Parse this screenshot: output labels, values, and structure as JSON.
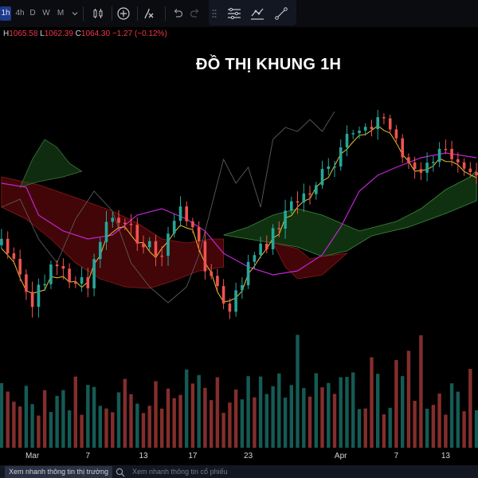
{
  "toolbar": {
    "timeframes": [
      "1h",
      "4h",
      "D",
      "W",
      "M"
    ],
    "active_timeframe": "1h",
    "icons": [
      "chevron-down-icon",
      "candles-icon",
      "add-indicator-icon",
      "indicators-icon",
      "undo-icon",
      "redo-icon",
      "drag-handle-icon",
      "settings-icon",
      "compare-icon",
      "drawing-icon"
    ]
  },
  "ohlc": {
    "h_label": "H",
    "h_value": "1065.58",
    "l_label": "L",
    "l_value": "1062.39",
    "c_label": "C",
    "c_value": "1064.30",
    "change": "−1.27 (−0.12%)"
  },
  "chart_title": "ĐỒ THỊ KHUNG 1H",
  "colors": {
    "up": "#26a69a",
    "down": "#ef5350",
    "kijun": "#c026d3",
    "tenkan": "#e6c229",
    "lagging": "#5a5a5a"
  },
  "x_axis": [
    {
      "label": "Mar",
      "bar": 5
    },
    {
      "label": "7",
      "bar": 14
    },
    {
      "label": "13",
      "bar": 23
    },
    {
      "label": "17",
      "bar": 31
    },
    {
      "label": "23",
      "bar": 40
    },
    {
      "label": "Apr",
      "bar": 55
    },
    {
      "label": "7",
      "bar": 64
    },
    {
      "label": "13",
      "bar": 72
    }
  ],
  "bottom_tabs": {
    "market_overview": "Xem nhanh thông tin thị trường",
    "stock_overview": "Xem nhanh thông tin cổ phiếu"
  }
}
